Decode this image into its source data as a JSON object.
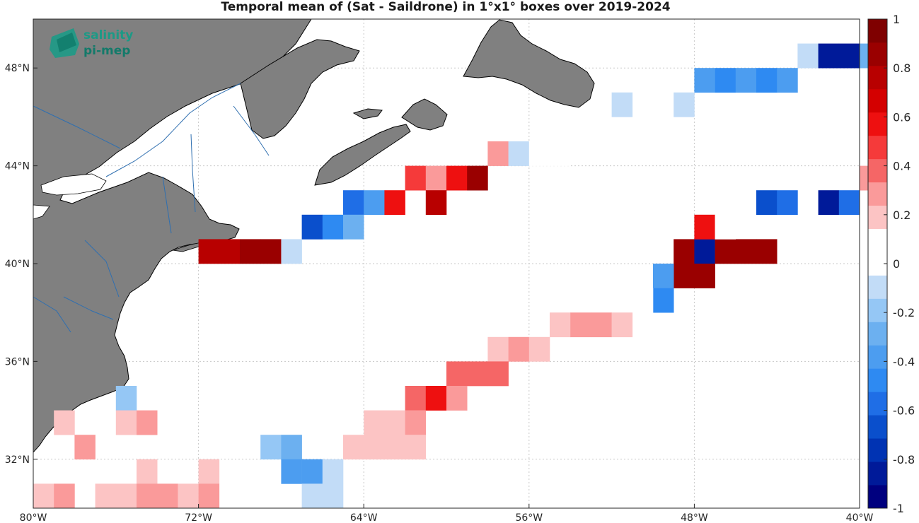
{
  "title": "Temporal mean of (Sat - Saildrone) in 1°x1° boxes over 2019-2024",
  "logo": {
    "line1": "salinity",
    "line2": "pi-mep",
    "icon": "salinity-pi-mep-logo"
  },
  "map": {
    "lon_range": [
      -80,
      -40
    ],
    "lat_range": [
      30,
      50
    ],
    "lon_ticks": [
      -80,
      -72,
      -64,
      -56,
      -48,
      -40
    ],
    "lon_tick_labels": [
      "80°W",
      "72°W",
      "64°W",
      "56°W",
      "48°W",
      "40°W"
    ],
    "lat_ticks": [
      32,
      36,
      40,
      44,
      48
    ],
    "lat_tick_labels": [
      "32°N",
      "36°N",
      "40°N",
      "44°N",
      "48°N"
    ],
    "grid": true,
    "colors": {
      "land": "#808080",
      "rivers": "#2f6fb0",
      "coast": "#000000",
      "grid": "#c8c8c8"
    }
  },
  "colorbar": {
    "position": "right",
    "range": [
      -1,
      1
    ],
    "ticks": [
      -1,
      -0.8,
      -0.6,
      -0.4,
      -0.2,
      0,
      0.2,
      0.4,
      0.6,
      0.8,
      1
    ],
    "tick_labels": [
      "-1",
      "-0.8",
      "-0.6",
      "-0.4",
      "-0.2",
      "0",
      "0.2",
      "0.4",
      "0.6",
      "0.8",
      "1"
    ],
    "colors": [
      "#00007f",
      "#001a99",
      "#0033b3",
      "#0a4fcc",
      "#1f6ee6",
      "#2e8af2",
      "#4c9df0",
      "#6cb0f0",
      "#95c7f5",
      "#c2dcf7",
      "#ffffff",
      "#ffffff",
      "#fcc4c4",
      "#fa9a9a",
      "#f56666",
      "#f53a3a",
      "#ee1010",
      "#d40000",
      "#b80000",
      "#9a0000",
      "#7f0000"
    ]
  },
  "chart_data": {
    "type": "heatmap",
    "title": "Temporal mean of (Sat - Saildrone) in 1°x1° boxes over 2019-2024",
    "x_unit": "longitude (°E)",
    "y_unit": "latitude (°N)",
    "cell_size_deg": 1,
    "cells": [
      {
        "lon": -42.5,
        "lat": 48.5,
        "value": -0.1
      },
      {
        "lon": -41.5,
        "lat": 48.5,
        "value": -0.9
      },
      {
        "lon": -40.5,
        "lat": 48.5,
        "value": -0.9
      },
      {
        "lon": -39.5,
        "lat": 48.5,
        "value": -0.3
      },
      {
        "lon": -47.5,
        "lat": 47.5,
        "value": -0.35
      },
      {
        "lon": -46.5,
        "lat": 47.5,
        "value": -0.5
      },
      {
        "lon": -45.5,
        "lat": 47.5,
        "value": -0.35
      },
      {
        "lon": -44.5,
        "lat": 47.5,
        "value": -0.5
      },
      {
        "lon": -43.5,
        "lat": 47.5,
        "value": -0.35
      },
      {
        "lon": -51.5,
        "lat": 46.5,
        "value": -0.1
      },
      {
        "lon": -48.5,
        "lat": 46.5,
        "value": -0.1
      },
      {
        "lon": -57.5,
        "lat": 44.5,
        "value": 0.3
      },
      {
        "lon": -56.5,
        "lat": 44.5,
        "value": -0.1
      },
      {
        "lon": -55.5,
        "lat": 44.5,
        "value": 0.1
      },
      {
        "lon": -54.5,
        "lat": 44.5,
        "value": 0.1
      },
      {
        "lon": -61.5,
        "lat": 43.5,
        "value": 0.5
      },
      {
        "lon": -60.5,
        "lat": 43.5,
        "value": 0.3
      },
      {
        "lon": -59.5,
        "lat": 43.5,
        "value": 0.6
      },
      {
        "lon": -58.5,
        "lat": 43.5,
        "value": 0.9
      },
      {
        "lon": -64.5,
        "lat": 42.5,
        "value": -0.55
      },
      {
        "lon": -63.5,
        "lat": 42.5,
        "value": -0.35
      },
      {
        "lon": -62.5,
        "lat": 42.5,
        "value": 0.6
      },
      {
        "lon": -60.5,
        "lat": 42.5,
        "value": 0.8
      },
      {
        "lon": -66.5,
        "lat": 41.5,
        "value": -0.7
      },
      {
        "lon": -65.5,
        "lat": 41.5,
        "value": -0.5
      },
      {
        "lon": -64.5,
        "lat": 41.5,
        "value": -0.25
      },
      {
        "lon": -71.5,
        "lat": 40.5,
        "value": 0.8
      },
      {
        "lon": -70.5,
        "lat": 40.5,
        "value": 0.8
      },
      {
        "lon": -69.5,
        "lat": 40.5,
        "value": 0.9
      },
      {
        "lon": -68.5,
        "lat": 40.5,
        "value": 0.9
      },
      {
        "lon": -67.5,
        "lat": 40.5,
        "value": -0.1
      },
      {
        "lon": -48.5,
        "lat": 40.5,
        "value": 0.9
      },
      {
        "lon": -47.5,
        "lat": 40.5,
        "value": -0.9
      },
      {
        "lon": -46.5,
        "lat": 40.5,
        "value": 0.9
      },
      {
        "lon": -45.5,
        "lat": 40.5,
        "value": 0.9
      },
      {
        "lon": -44.5,
        "lat": 40.5,
        "value": 0.9
      },
      {
        "lon": -47.5,
        "lat": 41.5,
        "value": 0.6
      },
      {
        "lon": -46.5,
        "lat": 41.5,
        "value": 0.1
      },
      {
        "lon": -44.5,
        "lat": 42.5,
        "value": -0.7
      },
      {
        "lon": -43.5,
        "lat": 42.5,
        "value": -0.55
      },
      {
        "lon": -41.5,
        "lat": 42.5,
        "value": -0.9
      },
      {
        "lon": -40.5,
        "lat": 42.5,
        "value": -0.6
      },
      {
        "lon": -39.5,
        "lat": 43.5,
        "value": 0.3
      },
      {
        "lon": -48.5,
        "lat": 39.5,
        "value": 0.9
      },
      {
        "lon": -47.5,
        "lat": 39.5,
        "value": 0.9
      },
      {
        "lon": -49.5,
        "lat": 39.5,
        "value": -0.4
      },
      {
        "lon": -49.5,
        "lat": 38.5,
        "value": -0.5
      },
      {
        "lon": -53.5,
        "lat": 38.5,
        "value": 0.1
      },
      {
        "lon": -50.5,
        "lat": 38.5,
        "value": 0.1
      },
      {
        "lon": -54.5,
        "lat": 37.5,
        "value": 0.15
      },
      {
        "lon": -53.5,
        "lat": 37.5,
        "value": 0.3
      },
      {
        "lon": -52.5,
        "lat": 37.5,
        "value": 0.3
      },
      {
        "lon": -51.5,
        "lat": 37.5,
        "value": 0.15
      },
      {
        "lon": -57.5,
        "lat": 36.5,
        "value": 0.15
      },
      {
        "lon": -56.5,
        "lat": 36.5,
        "value": 0.3
      },
      {
        "lon": -55.5,
        "lat": 36.5,
        "value": 0.15
      },
      {
        "lon": -59.5,
        "lat": 35.5,
        "value": 0.4
      },
      {
        "lon": -58.5,
        "lat": 35.5,
        "value": 0.4
      },
      {
        "lon": -57.5,
        "lat": 35.5,
        "value": 0.4
      },
      {
        "lon": -61.5,
        "lat": 34.5,
        "value": 0.35
      },
      {
        "lon": -60.5,
        "lat": 34.5,
        "value": 0.55
      },
      {
        "lon": -59.5,
        "lat": 34.5,
        "value": 0.3
      },
      {
        "lon": -63.5,
        "lat": 33.5,
        "value": 0.15
      },
      {
        "lon": -62.5,
        "lat": 33.5,
        "value": 0.15
      },
      {
        "lon": -61.5,
        "lat": 33.5,
        "value": 0.3
      },
      {
        "lon": -64.5,
        "lat": 32.5,
        "value": 0.15
      },
      {
        "lon": -63.5,
        "lat": 32.5,
        "value": 0.15
      },
      {
        "lon": -62.5,
        "lat": 32.5,
        "value": 0.15
      },
      {
        "lon": -61.5,
        "lat": 32.5,
        "value": 0.15
      },
      {
        "lon": -68.5,
        "lat": 32.5,
        "value": -0.15
      },
      {
        "lon": -67.5,
        "lat": 32.5,
        "value": -0.25
      },
      {
        "lon": -67.5,
        "lat": 31.5,
        "value": -0.4
      },
      {
        "lon": -66.5,
        "lat": 31.5,
        "value": -0.4
      },
      {
        "lon": -66.5,
        "lat": 30.5,
        "value": -0.1
      },
      {
        "lon": -65.5,
        "lat": 30.5,
        "value": -0.1
      },
      {
        "lon": -65.5,
        "lat": 31.5,
        "value": -0.1
      },
      {
        "lon": -75.5,
        "lat": 34.5,
        "value": -0.15
      },
      {
        "lon": -78.5,
        "lat": 33.5,
        "value": 0.15
      },
      {
        "lon": -75.5,
        "lat": 33.5,
        "value": 0.15
      },
      {
        "lon": -74.5,
        "lat": 33.5,
        "value": 0.3
      },
      {
        "lon": -77.5,
        "lat": 32.5,
        "value": 0.3
      },
      {
        "lon": -74.5,
        "lat": 31.5,
        "value": 0.15
      },
      {
        "lon": -71.5,
        "lat": 31.5,
        "value": 0.15
      },
      {
        "lon": -79.5,
        "lat": 30.5,
        "value": 0.15
      },
      {
        "lon": -78.5,
        "lat": 30.5,
        "value": 0.3
      },
      {
        "lon": -76.5,
        "lat": 30.5,
        "value": 0.15
      },
      {
        "lon": -75.5,
        "lat": 30.5,
        "value": 0.15
      },
      {
        "lon": -74.5,
        "lat": 30.5,
        "value": 0.3
      },
      {
        "lon": -73.5,
        "lat": 30.5,
        "value": 0.3
      },
      {
        "lon": -72.5,
        "lat": 30.5,
        "value": 0.15
      },
      {
        "lon": -71.5,
        "lat": 30.5,
        "value": 0.3
      }
    ]
  }
}
